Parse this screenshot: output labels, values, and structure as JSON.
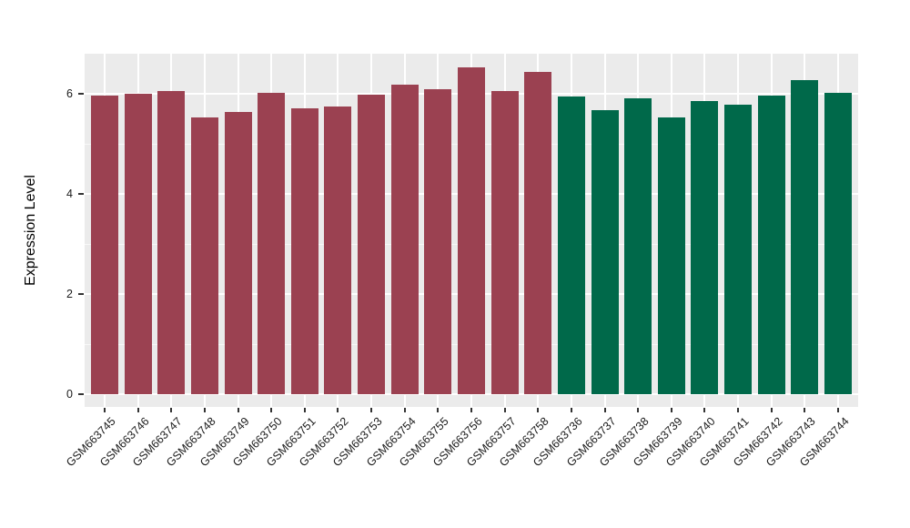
{
  "chart_data": {
    "type": "bar",
    "title": "",
    "xlabel": "",
    "ylabel": "Expression Level",
    "ylim": [
      0,
      6.85
    ],
    "y_ticks": [
      0,
      2,
      4,
      6
    ],
    "y_minor_ticks": [
      1,
      3,
      5
    ],
    "grid": true,
    "legend_position": "none",
    "categories": [
      "GSM663745",
      "GSM663746",
      "GSM663747",
      "GSM663748",
      "GSM663749",
      "GSM663750",
      "GSM663751",
      "GSM663752",
      "GSM663753",
      "GSM663754",
      "GSM663755",
      "GSM663756",
      "GSM663757",
      "GSM663758",
      "GSM663736",
      "GSM663737",
      "GSM663738",
      "GSM663739",
      "GSM663740",
      "GSM663741",
      "GSM663742",
      "GSM663743",
      "GSM663744"
    ],
    "values": [
      5.97,
      6.0,
      6.06,
      5.52,
      5.63,
      6.01,
      5.71,
      5.75,
      5.98,
      6.18,
      6.09,
      6.52,
      6.05,
      6.43,
      5.95,
      5.68,
      5.91,
      5.52,
      5.85,
      5.78,
      5.96,
      6.28,
      6.02
    ],
    "color_groups": [
      {
        "color": "#9B4151",
        "from_index": 0,
        "to_index": 13
      },
      {
        "color": "#00694A",
        "from_index": 14,
        "to_index": 22
      }
    ],
    "colors": {
      "figure_background": "#FFFFFF",
      "panel_background": "#EBEBEB",
      "gridline": "#FFFFFF",
      "tick_mark": "#333333",
      "axis_text": "#1A1A1A",
      "axis_title": "#000000"
    }
  }
}
